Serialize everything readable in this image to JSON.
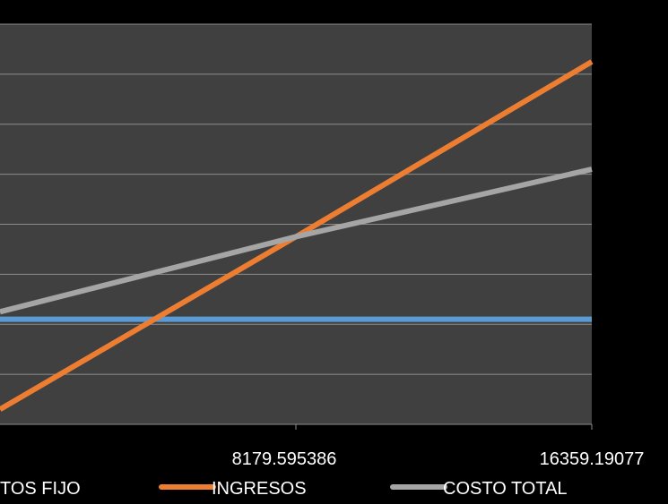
{
  "chart_data": {
    "type": "line",
    "title": "",
    "xlabel": "",
    "ylabel": "",
    "x": [
      0,
      8179.595386,
      16359.19077
    ],
    "x_tick_labels": [
      "",
      "8179.595386",
      "16359.19077"
    ],
    "ylim": [
      0,
      8
    ],
    "grid": true,
    "legend_position": "bottom",
    "background": "#404040",
    "series": [
      {
        "name": "COSTOS FIJO",
        "legend_visible_text": "TOS FIJO",
        "color": "#5b9bd5",
        "values": [
          2.1,
          2.1,
          2.1
        ]
      },
      {
        "name": "INGRESOS",
        "legend_visible_text": "INGRESOS",
        "color": "#ed7d31",
        "values": [
          0.3,
          3.75,
          7.25
        ]
      },
      {
        "name": "COSTO TOTAL",
        "legend_visible_text": "COSTO TOTAL",
        "color": "#a5a5a5",
        "values": [
          2.25,
          3.75,
          5.1
        ]
      }
    ]
  }
}
